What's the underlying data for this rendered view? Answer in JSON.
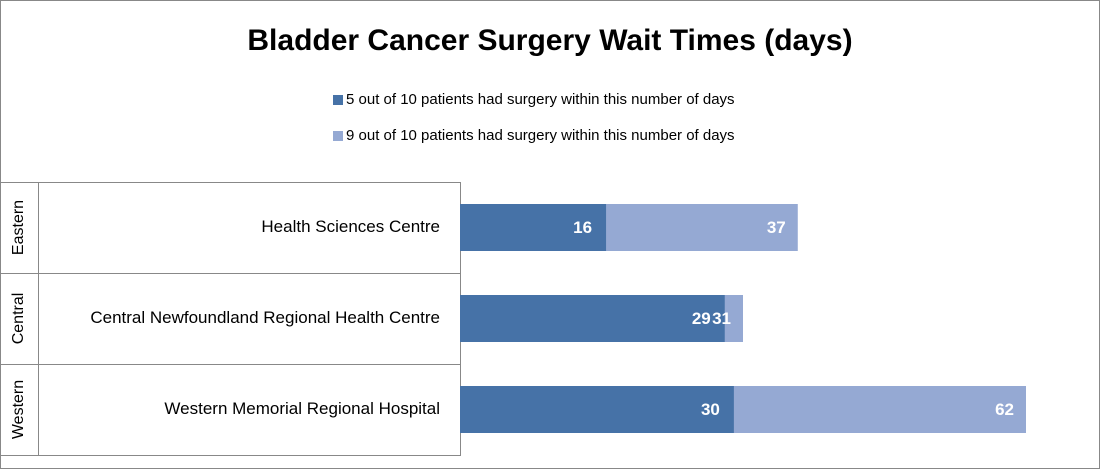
{
  "chart_data": {
    "type": "bar",
    "orientation": "horizontal",
    "overlap": true,
    "title": "Bladder Cancer Surgery Wait Times (days)",
    "groups": [
      "Eastern",
      "Central",
      "Western"
    ],
    "categories": [
      "Health Sciences Centre",
      "Central Newfoundland Regional Health Centre",
      "Western Memorial Regional Hospital"
    ],
    "series": [
      {
        "name": "5 out of 10 patients had surgery within this number of days",
        "color": "#4672a7",
        "values": [
          16,
          29,
          30
        ]
      },
      {
        "name": "9 out of 10 patients had surgery within this number of days",
        "color": "#95a9d3",
        "values": [
          37,
          31,
          62
        ]
      }
    ]
  }
}
